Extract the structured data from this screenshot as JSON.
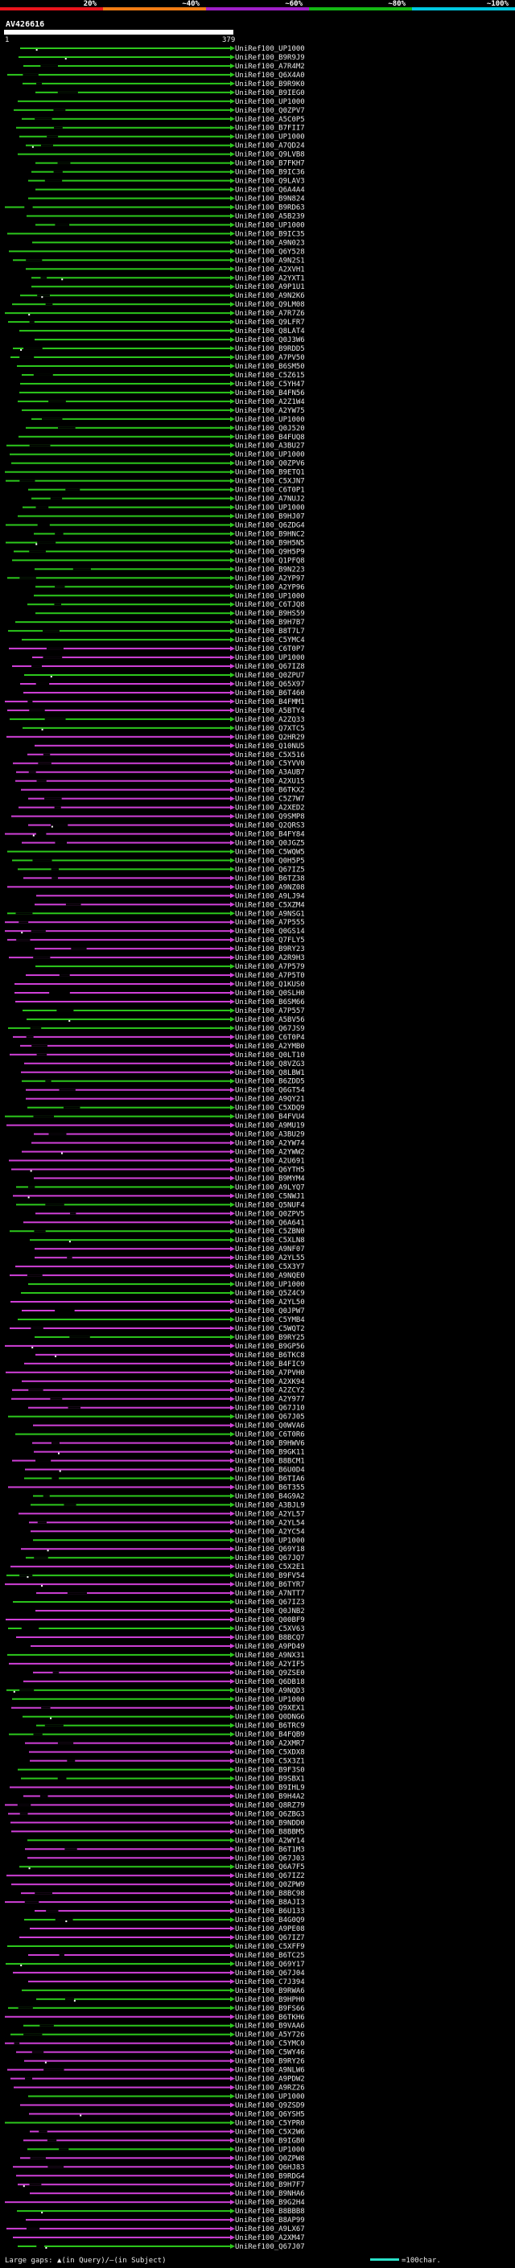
{
  "query_id": "AV426616",
  "query_start": "1",
  "query_end": "379",
  "footer": {
    "gaps_text": "Large gaps: ▲(in Query)/–(in Subject)",
    "scale_text": "=100char."
  },
  "chart_data": {
    "type": "bar",
    "title": "",
    "scale_labels": [
      "20%",
      "~40%",
      "~60%",
      "~80%",
      "~100%"
    ],
    "scale_colors": [
      "#e8141c",
      "#f07c14",
      "#a020c8",
      "#14b814",
      "#00c8e0"
    ],
    "identity_colors": {
      "green": "#2cc81c",
      "magenta": "#d040d8"
    },
    "query_length": 379,
    "hits": [
      "UniRef100_UP1000",
      "UniRef100_B9R9J9",
      "UniRef100_A7R4M2",
      "UniRef100_Q6X4A0",
      "UniRef100_B9R9K0",
      "UniRef100_B9IEG0",
      "UniRef100_UP1000",
      "UniRef100_Q0ZPV7",
      "UniRef100_A5C0P5",
      "UniRef100_B7FII7",
      "UniRef100_UP1000",
      "UniRef100_A7QD24",
      "UniRef100_Q9LVB8",
      "UniRef100_B7FKH7",
      "UniRef100_B9IC36",
      "UniRef100_Q9LAV3",
      "UniRef100_Q6A4A4",
      "UniRef100_B9N824",
      "UniRef100_B9RD63",
      "UniRef100_A5B239",
      "UniRef100_UP1000",
      "UniRef100_B9IC35",
      "UniRef100_A9N023",
      "UniRef100_Q6Y528",
      "UniRef100_A9N2S1",
      "UniRef100_A2XVH1",
      "UniRef100_A2YXT1",
      "UniRef100_A9P1U1",
      "UniRef100_A9N2K6",
      "UniRef100_Q9LM08",
      "UniRef100_A7R7Z6",
      "UniRef100_Q9LFR7",
      "UniRef100_Q8LAT4",
      "UniRef100_Q0J3W6",
      "UniRef100_B9RDD5",
      "UniRef100_A7PV50",
      "UniRef100_B6SM50",
      "UniRef100_C5Z615",
      "UniRef100_C5YH47",
      "UniRef100_B4FN56",
      "UniRef100_A2Z1W4",
      "UniRef100_A2YW75",
      "UniRef100_UP1000",
      "UniRef100_Q0J520",
      "UniRef100_B4FUQ8",
      "UniRef100_A3BU27",
      "UniRef100_UP1000",
      "UniRef100_Q0ZPV6",
      "UniRef100_B9ETQ1",
      "UniRef100_C5XJN7",
      "UniRef100_C6T0P1",
      "UniRef100_A7NUJ2",
      "UniRef100_UP1000",
      "UniRef100_B9HJ07",
      "UniRef100_Q6ZDG4",
      "UniRef100_B9HNC2",
      "UniRef100_B9H5N5",
      "UniRef100_Q9H5P9",
      "UniRef100_Q1PFQ8",
      "UniRef100_B9N223",
      "UniRef100_A2YP97",
      "UniRef100_A2YP96",
      "UniRef100_UP1000",
      "UniRef100_C6TJQ8",
      "UniRef100_B9HS59",
      "UniRef100_B9H7B7",
      "UniRef100_B8T7L7",
      "UniRef100_C5YMC4",
      "UniRef100_C6T0P7",
      "UniRef100_UP1000",
      "UniRef100_Q67IZ8",
      "UniRef100_Q0ZPU7",
      "UniRef100_Q65X97",
      "UniRef100_B6T460",
      "UniRef100_B4FMM1",
      "UniRef100_A5BTY4",
      "UniRef100_A2ZQ33",
      "UniRef100_Q7XTC5",
      "UniRef100_Q2HR29",
      "UniRef100_Q10NU5",
      "UniRef100_C5X516",
      "UniRef100_C5YVV0",
      "UniRef100_A3AUB7",
      "UniRef100_A2XU15",
      "UniRef100_B6TKX2",
      "UniRef100_C5Z7W7",
      "UniRef100_A2XED2",
      "UniRef100_Q9SMP8",
      "UniRef100_Q2QRS3",
      "UniRef100_B4FY84",
      "UniRef100_Q0JGZ5",
      "UniRef100_C5WQW5",
      "UniRef100_Q0H5P5",
      "UniRef100_Q67IZ5",
      "UniRef100_B6TZ38",
      "UniRef100_A9NZ08",
      "UniRef100_A9LJ94",
      "UniRef100_C5XZM4",
      "UniRef100_A9NSG1",
      "UniRef100_A7P555",
      "UniRef100_Q0GS14",
      "UniRef100_Q7FLY5",
      "UniRef100_B9RY23",
      "UniRef100_A2R9H3",
      "UniRef100_A7P579",
      "UniRef100_A7P5T0",
      "UniRef100_Q1KUS0",
      "UniRef100_Q0SLH0",
      "UniRef100_B6SM66",
      "UniRef100_A7P557",
      "UniRef100_A5BV56",
      "UniRef100_Q67JS9",
      "UniRef100_C6T0P4",
      "UniRef100_A2YMB0",
      "UniRef100_Q0LT10",
      "UniRef100_Q8VZG3",
      "UniRef100_Q8LBW1",
      "UniRef100_B6ZDD5",
      "UniRef100_Q6GT54",
      "UniRef100_A9QY21",
      "UniRef100_C5XDQ9",
      "UniRef100_B4FVU4",
      "UniRef100_A9MU19",
      "UniRef100_A3BU29",
      "UniRef100_A2YW74",
      "UniRef100_A2YWW2",
      "UniRef100_A2U691",
      "UniRef100_Q6YTH5",
      "UniRef100_B9MYM4",
      "UniRef100_A9LYQ7",
      "UniRef100_C5NWJ1",
      "UniRef100_Q5NUF4",
      "UniRef100_Q0ZPV5",
      "UniRef100_Q6A641",
      "UniRef100_C5ZBN0",
      "UniRef100_C5XLN8",
      "UniRef100_A9NF07",
      "UniRef100_A2YL55",
      "UniRef100_C5X3Y7",
      "UniRef100_A9NQE0",
      "UniRef100_UP1000",
      "UniRef100_Q5Z4C9",
      "UniRef100_A2YL50",
      "UniRef100_Q0JPW7",
      "UniRef100_C5YMB4",
      "UniRef100_C5WQT2",
      "UniRef100_B9RY25",
      "UniRef100_B9GP56",
      "UniRef100_B6TKC8",
      "UniRef100_B4FIC9",
      "UniRef100_A7PVH0",
      "UniRef100_A2XK94",
      "UniRef100_A2ZCY2",
      "UniRef100_A2Y977",
      "UniRef100_Q67J10",
      "UniRef100_Q67J05",
      "UniRef100_Q0WVA6",
      "UniRef100_C6T0R6",
      "UniRef100_B9HWV6",
      "UniRef100_B9GK11",
      "UniRef100_B8BCM1",
      "UniRef100_B6U0D4",
      "UniRef100_B6TIA6",
      "UniRef100_B6T355",
      "UniRef100_B4G9A2",
      "UniRef100_A3BJL9",
      "UniRef100_A2YL57",
      "UniRef100_A2YL54",
      "UniRef100_A2YC54",
      "UniRef100_UP1000",
      "UniRef100_Q69Y18",
      "UniRef100_Q67JQ7",
      "UniRef100_C5X2E1",
      "UniRef100_B9FV54",
      "UniRef100_B6TYR7",
      "UniRef100_A7NTT7",
      "UniRef100_Q67IZ3",
      "UniRef100_Q0JNB2",
      "UniRef100_Q00BF9",
      "UniRef100_C5XV63",
      "UniRef100_B8BCQ7",
      "UniRef100_A9PD49",
      "UniRef100_A9NX31",
      "UniRef100_A2YIF5",
      "UniRef100_Q9ZSE0",
      "UniRef100_Q6DB18",
      "UniRef100_A9NQD3",
      "UniRef100_UP1000",
      "UniRef100_Q9XEX1",
      "UniRef100_Q0DNG6",
      "UniRef100_B6TRC9",
      "UniRef100_B4FQB9",
      "UniRef100_A2XMR7",
      "UniRef100_C5XDX8",
      "UniRef100_C5X3Z1",
      "UniRef100_B9F3S0",
      "UniRef100_B9SBX1",
      "UniRef100_B9IHL9",
      "UniRef100_B9H4A2",
      "UniRef100_Q8RZ79",
      "UniRef100_Q6ZBG3",
      "UniRef100_B9NDD0",
      "UniRef100_B8BBM5",
      "UniRef100_A2WY14",
      "UniRef100_B6T1M3",
      "UniRef100_Q67J03",
      "UniRef100_Q6A7F5",
      "UniRef100_Q67IZ2",
      "UniRef100_Q0ZPW9",
      "UniRef100_B8BC98",
      "UniRef100_B8AJI3",
      "UniRef100_B6U133",
      "UniRef100_B4G0Q9",
      "UniRef100_A9PE08",
      "UniRef100_Q67IZ7",
      "UniRef100_C5XFF9",
      "UniRef100_B6TC25",
      "UniRef100_Q69Y17",
      "UniRef100_Q67J04",
      "UniRef100_C7J394",
      "UniRef100_B9RWA6",
      "UniRef100_B9HPH0",
      "UniRef100_B9FS66",
      "UniRef100_B6TKH6",
      "UniRef100_B9VAA6",
      "UniRef100_A5Y726",
      "UniRef100_C5YMC0",
      "UniRef100_C5WY46",
      "UniRef100_B9RY26",
      "UniRef100_A9NLW6",
      "UniRef100_A9PDW2",
      "UniRef100_A9RZ26",
      "UniRef100_UP1000",
      "UniRef100_Q9ZSD9",
      "UniRef100_Q6YSH5",
      "UniRef100_C5YPR0",
      "UniRef100_C5X2W6",
      "UniRef100_B9IGB0",
      "UniRef100_UP1000",
      "UniRef100_Q0ZPW8",
      "UniRef100_Q6HJ83",
      "UniRef100_B9RDG4",
      "UniRef100_B9H7F7",
      "UniRef100_B9NHA6",
      "UniRef100_B9G2H4",
      "UniRef100_B8BBB8",
      "UniRef100_B8AP99",
      "UniRef100_A9LX67",
      "UniRef100_A2XM47",
      "UniRef100_Q67J07"
    ]
  }
}
